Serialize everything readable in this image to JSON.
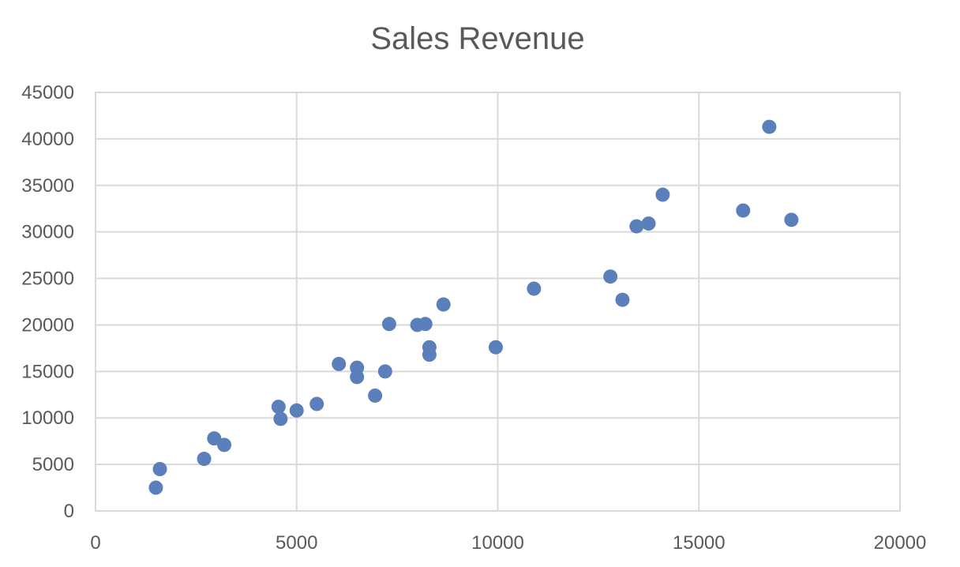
{
  "chart_data": {
    "type": "scatter",
    "title": "Sales Revenue",
    "xlabel": "",
    "ylabel": "",
    "xlim": [
      0,
      20000
    ],
    "ylim": [
      0,
      45000
    ],
    "x_ticks": [
      0,
      5000,
      10000,
      15000,
      20000
    ],
    "y_ticks": [
      0,
      5000,
      10000,
      15000,
      20000,
      25000,
      30000,
      35000,
      40000,
      45000
    ],
    "grid": true,
    "legend": "none",
    "marker_color": "#5b7fbb",
    "series": [
      {
        "points": [
          {
            "x": 1500,
            "y": 2500
          },
          {
            "x": 1600,
            "y": 4500
          },
          {
            "x": 2700,
            "y": 5600
          },
          {
            "x": 2950,
            "y": 7800
          },
          {
            "x": 3200,
            "y": 7100
          },
          {
            "x": 4550,
            "y": 11200
          },
          {
            "x": 4600,
            "y": 9900
          },
          {
            "x": 5000,
            "y": 10800
          },
          {
            "x": 5500,
            "y": 11500
          },
          {
            "x": 6050,
            "y": 15800
          },
          {
            "x": 6500,
            "y": 15400
          },
          {
            "x": 6500,
            "y": 14400
          },
          {
            "x": 6950,
            "y": 12400
          },
          {
            "x": 7200,
            "y": 15000
          },
          {
            "x": 7300,
            "y": 20100
          },
          {
            "x": 8000,
            "y": 20000
          },
          {
            "x": 8200,
            "y": 20100
          },
          {
            "x": 8300,
            "y": 17600
          },
          {
            "x": 8300,
            "y": 16800
          },
          {
            "x": 8650,
            "y": 22200
          },
          {
            "x": 9950,
            "y": 17600
          },
          {
            "x": 10900,
            "y": 23900
          },
          {
            "x": 12800,
            "y": 25200
          },
          {
            "x": 13100,
            "y": 22700
          },
          {
            "x": 13450,
            "y": 30600
          },
          {
            "x": 13750,
            "y": 30900
          },
          {
            "x": 14100,
            "y": 34000
          },
          {
            "x": 16100,
            "y": 32300
          },
          {
            "x": 16750,
            "y": 41300
          },
          {
            "x": 17300,
            "y": 31300
          }
        ]
      }
    ]
  }
}
